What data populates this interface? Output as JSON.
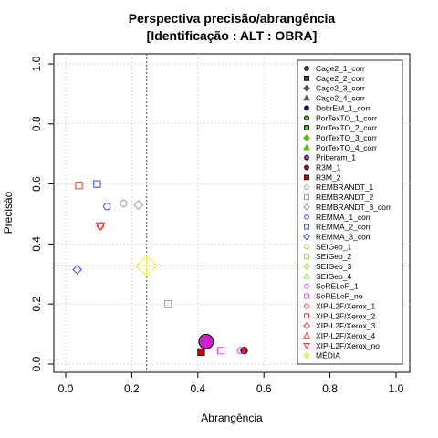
{
  "chart_data": {
    "type": "scatter",
    "title_line1": "Perspectiva precisão/abrangência",
    "title_line2": "[Identificação : ALT : OBRA]",
    "xlabel": "Abrangência",
    "ylabel": "Precisão",
    "xlim": [
      0,
      1
    ],
    "ylim": [
      0,
      1
    ],
    "x_ticks": [
      "0.0",
      "0.2",
      "0.4",
      "0.6",
      "0.8",
      "1.0"
    ],
    "y_ticks": [
      "0.0",
      "0.2",
      "0.4",
      "0.6",
      "0.8",
      "1.0"
    ],
    "grid": true,
    "legend_position": "top-right",
    "reference_lines": {
      "x": 0.245,
      "y": 0.327
    },
    "series": [
      {
        "name": "Cage2_1_corr",
        "color": "#555555",
        "marker": "circle",
        "filled": true
      },
      {
        "name": "Cage2_2_corr",
        "color": "#555555",
        "marker": "square",
        "filled": true
      },
      {
        "name": "Cage2_3_corr",
        "color": "#555555",
        "marker": "diamond",
        "filled": true
      },
      {
        "name": "Cage2_4_corr",
        "color": "#555555",
        "marker": "triangle",
        "filled": true
      },
      {
        "name": "DobrEM_1_corr",
        "color": "#0000cc",
        "marker": "circle",
        "filled": true
      },
      {
        "name": "PorTexTO_1_corr",
        "color": "#44cc00",
        "marker": "circle",
        "filled": true
      },
      {
        "name": "PorTexTO_2_corr",
        "color": "#44cc00",
        "marker": "square",
        "filled": true
      },
      {
        "name": "PorTexTO_3_corr",
        "color": "#44cc00",
        "marker": "diamond",
        "filled": true
      },
      {
        "name": "PorTexTO_4_corr",
        "color": "#44cc00",
        "marker": "triangle",
        "filled": true
      },
      {
        "name": "Priberam_1",
        "color": "#cc22cc",
        "marker": "circle",
        "filled": true,
        "x": 0.425,
        "y": 0.075,
        "size": 2.2
      },
      {
        "name": "R3M_1",
        "color": "#dd0000",
        "marker": "circle",
        "filled": true,
        "x": 0.54,
        "y": 0.045
      },
      {
        "name": "R3M_2",
        "color": "#dd0000",
        "marker": "square",
        "filled": true,
        "x": 0.41,
        "y": 0.04
      },
      {
        "name": "REMBRANDT_1",
        "color": "#999999",
        "marker": "circle",
        "filled": false,
        "x": 0.175,
        "y": 0.535
      },
      {
        "name": "REMBRANDT_2",
        "color": "#999999",
        "marker": "square",
        "filled": false,
        "x": 0.31,
        "y": 0.2
      },
      {
        "name": "REMBRANDT_3_corr",
        "color": "#999999",
        "marker": "diamond",
        "filled": false,
        "x": 0.22,
        "y": 0.53
      },
      {
        "name": "REMMA_1_corr",
        "color": "#3344ee",
        "marker": "circle",
        "filled": false,
        "x": 0.125,
        "y": 0.525
      },
      {
        "name": "REMMA_2_corr",
        "color": "#3344ee",
        "marker": "square",
        "filled": false,
        "x": 0.095,
        "y": 0.6
      },
      {
        "name": "REMMA_3_corr",
        "color": "#3344ee",
        "marker": "diamond",
        "filled": false,
        "x": 0.035,
        "y": 0.315
      },
      {
        "name": "SEIGeo_1",
        "color": "#99dd33",
        "marker": "circle",
        "filled": false
      },
      {
        "name": "SEIGeo_2",
        "color": "#99dd33",
        "marker": "square",
        "filled": false
      },
      {
        "name": "SEIGeo_3",
        "color": "#99dd33",
        "marker": "diamond",
        "filled": false
      },
      {
        "name": "SEIGeo_4",
        "color": "#99dd33",
        "marker": "triangle",
        "filled": false
      },
      {
        "name": "SeRELeP_1",
        "color": "#ee44ee",
        "marker": "circle",
        "filled": false,
        "x": 0.53,
        "y": 0.045
      },
      {
        "name": "SeRELeP_no",
        "color": "#ee44ee",
        "marker": "square",
        "filled": false,
        "x": 0.47,
        "y": 0.045
      },
      {
        "name": "XIP-L2F/Xerox_1",
        "color": "#ee3333",
        "marker": "circle",
        "filled": false,
        "x": 0.105,
        "y": 0.46
      },
      {
        "name": "XIP-L2F/Xerox_2",
        "color": "#ee3333",
        "marker": "square",
        "filled": false,
        "x": 0.04,
        "y": 0.595
      },
      {
        "name": "XIP-L2F/Xerox_3",
        "color": "#ee3333",
        "marker": "diamond",
        "filled": false
      },
      {
        "name": "XIP-L2F/Xerox_4",
        "color": "#ee3333",
        "marker": "triangle",
        "filled": false
      },
      {
        "name": "XIP-L2F/Xerox_no",
        "color": "#ee3333",
        "marker": "triangle-down",
        "filled": false,
        "x": 0.105,
        "y": 0.46
      },
      {
        "name": "MÉDIA",
        "color": "#eeee55",
        "marker": "diamond-cross",
        "filled": false,
        "x": 0.245,
        "y": 0.327,
        "size": 2.4
      }
    ]
  }
}
